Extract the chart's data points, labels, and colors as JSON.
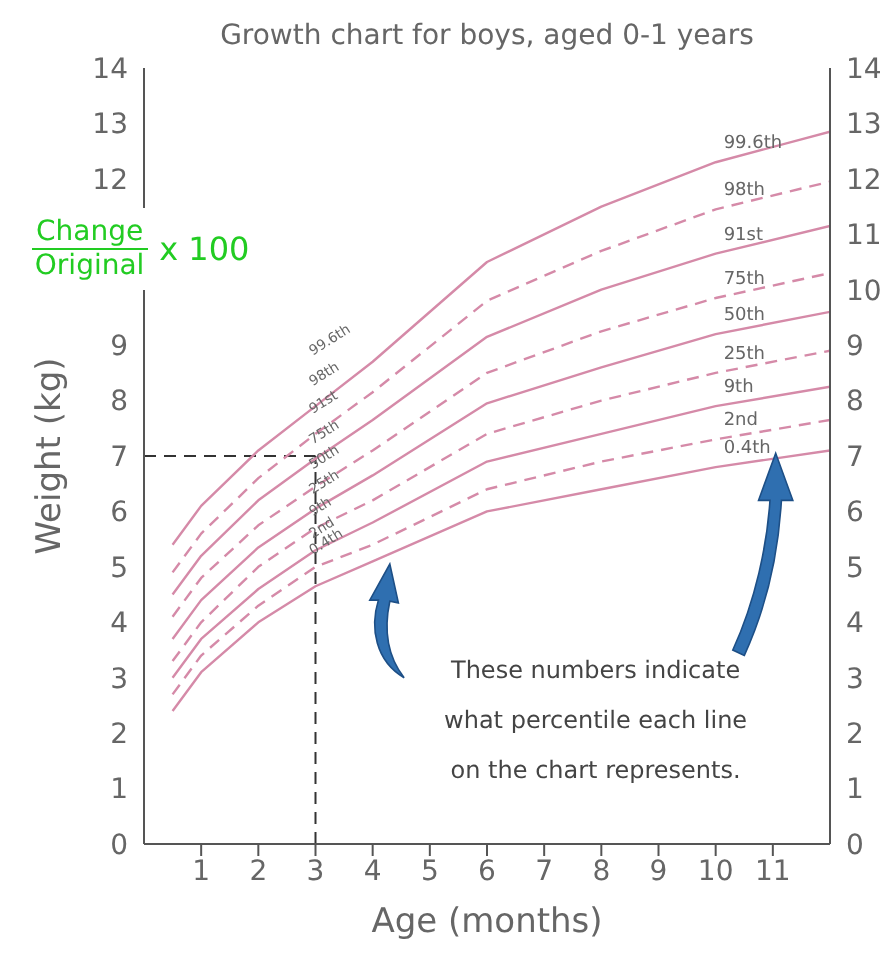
{
  "chart_data": {
    "type": "line",
    "title": "Growth chart for boys, aged 0-1 years",
    "xlabel": "Age (months)",
    "ylabel": "Weight (kg)",
    "x": [
      0.5,
      1,
      2,
      3,
      4,
      6,
      8,
      10,
      12
    ],
    "xlim": [
      0,
      12
    ],
    "xticks": [
      1,
      2,
      3,
      4,
      5,
      6,
      7,
      8,
      9,
      10,
      11
    ],
    "ylim": [
      0,
      14
    ],
    "yticks": [
      0,
      1,
      2,
      3,
      4,
      5,
      6,
      7,
      8,
      9,
      12,
      13,
      14
    ],
    "y2lim": [
      0,
      14
    ],
    "y2ticks": [
      0,
      1,
      2,
      3,
      4,
      5,
      6,
      7,
      8,
      9,
      10,
      11,
      12,
      13,
      14
    ],
    "grid": false,
    "legend": false,
    "marker": "none",
    "series": [
      {
        "name": "0.4th",
        "color": "#d58aa8",
        "line_style": "solid",
        "values": [
          2.4,
          3.1,
          4.0,
          4.65,
          5.1,
          6.0,
          6.4,
          6.8,
          7.1
        ]
      },
      {
        "name": "2nd",
        "color": "#d58aa8",
        "line_style": "dashed",
        "values": [
          2.7,
          3.4,
          4.3,
          5.0,
          5.4,
          6.4,
          6.9,
          7.3,
          7.65
        ]
      },
      {
        "name": "9th",
        "color": "#d58aa8",
        "line_style": "solid",
        "values": [
          3.0,
          3.7,
          4.6,
          5.3,
          5.8,
          6.9,
          7.4,
          7.9,
          8.25
        ]
      },
      {
        "name": "25th",
        "color": "#d58aa8",
        "line_style": "dashed",
        "values": [
          3.3,
          4.0,
          5.0,
          5.7,
          6.2,
          7.4,
          8.0,
          8.5,
          8.9
        ]
      },
      {
        "name": "50th",
        "color": "#d58aa8",
        "line_style": "solid",
        "values": [
          3.7,
          4.4,
          5.35,
          6.05,
          6.65,
          7.95,
          8.6,
          9.2,
          9.6
        ]
      },
      {
        "name": "75th",
        "color": "#d58aa8",
        "line_style": "dashed",
        "values": [
          4.1,
          4.8,
          5.75,
          6.45,
          7.1,
          8.5,
          9.25,
          9.85,
          10.3
        ]
      },
      {
        "name": "91st",
        "color": "#d58aa8",
        "line_style": "solid",
        "values": [
          4.5,
          5.2,
          6.2,
          6.95,
          7.65,
          9.15,
          10.0,
          10.65,
          11.15
        ]
      },
      {
        "name": "98th",
        "color": "#d58aa8",
        "line_style": "dashed",
        "values": [
          4.9,
          5.6,
          6.6,
          7.4,
          8.15,
          9.8,
          10.7,
          11.45,
          11.95
        ]
      },
      {
        "name": "99.6th",
        "color": "#d58aa8",
        "line_style": "solid",
        "values": [
          5.4,
          6.1,
          7.1,
          7.9,
          8.7,
          10.5,
          11.5,
          12.3,
          12.85
        ]
      }
    ],
    "ref_lines": [
      {
        "axis": "y",
        "value": 7,
        "color": "#333333",
        "line_style": "dashed"
      },
      {
        "axis": "x",
        "value": 3,
        "color": "#333333",
        "line_style": "dashed"
      }
    ],
    "annotations": [
      {
        "text": "These numbers indicate what percentile each line on the chart represents."
      },
      "Change",
      "Original",
      "x 100"
    ]
  }
}
